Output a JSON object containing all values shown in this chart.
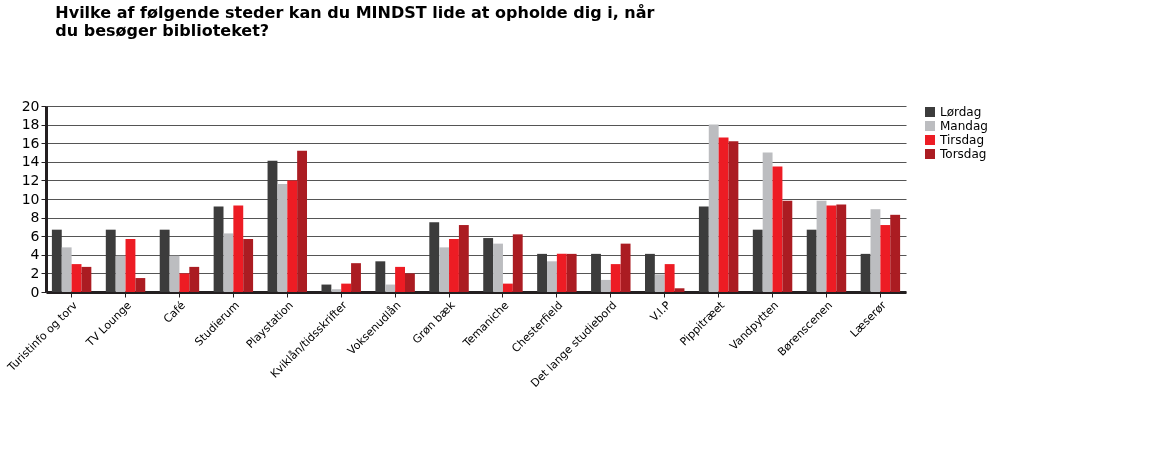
{
  "chart_data": {
    "type": "bar",
    "title": "Hvilke af følgende steder kan du MINDST lide at opholde dig i, når du besøger biblioteket?",
    "categories": [
      "Turistinfo og torv",
      "TV Lounge",
      "Café",
      "Studierum",
      "Playstation",
      "Kviklån/tidsskrifter",
      "Voksenudlån",
      "Grøn bæk",
      "Temaniche",
      "Chesterfield",
      "Det lange studiebord",
      "V.I.P",
      "Pippitræet",
      "Vandpytten",
      "Børenscenen",
      "Læserør"
    ],
    "series": [
      {
        "name": "Lørdag",
        "color": "#3c3c3c",
        "values": [
          6.7,
          6.7,
          6.7,
          9.2,
          14.1,
          0.8,
          3.3,
          7.5,
          5.8,
          4.1,
          4.1,
          4.1,
          9.2,
          6.7,
          6.7,
          4.1
        ]
      },
      {
        "name": "Mandag",
        "color": "#bcbdc0",
        "values": [
          4.8,
          3.9,
          3.9,
          6.3,
          11.6,
          0.3,
          0.8,
          4.8,
          5.2,
          3.3,
          1.3,
          1.9,
          18.0,
          15.0,
          9.8,
          8.9
        ]
      },
      {
        "name": "Tirsdag",
        "color": "#ed1c24",
        "values": [
          3.0,
          5.7,
          2.0,
          9.3,
          12.0,
          0.9,
          2.7,
          5.7,
          0.9,
          4.1,
          3.0,
          3.0,
          16.6,
          13.5,
          9.3,
          7.2
        ]
      },
      {
        "name": "Torsdag",
        "color": "#ab1c22",
        "values": [
          2.7,
          1.5,
          2.7,
          5.7,
          15.2,
          3.1,
          2.0,
          7.2,
          6.2,
          4.1,
          5.2,
          0.4,
          16.2,
          9.8,
          9.4,
          8.3
        ]
      }
    ],
    "ylim": [
      0,
      20
    ],
    "yticks": [
      0,
      2,
      4,
      6,
      8,
      10,
      12,
      14,
      16,
      18,
      20
    ],
    "grid": "y",
    "legend": "right"
  }
}
